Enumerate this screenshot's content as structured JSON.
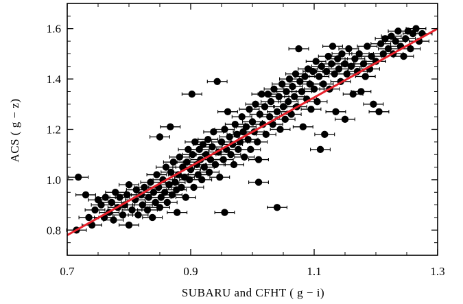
{
  "chart_data": {
    "type": "scatter",
    "xlabel": "SUBARU and CFHT ( g − i)",
    "ylabel": "ACS ( g − z)",
    "xlim": [
      0.7,
      1.3
    ],
    "ylim": [
      0.7,
      1.7
    ],
    "x_ticks": [
      0.7,
      0.9,
      1.1,
      1.3
    ],
    "x_tick_labels": [
      "0.7",
      "0.9",
      "1.1",
      "1.3"
    ],
    "y_ticks": [
      0.8,
      1.0,
      1.2,
      1.4,
      1.6
    ],
    "y_tick_labels": [
      "0.8",
      "1.0",
      "1.2",
      "1.4",
      "1.6"
    ],
    "grid": false,
    "legend": "none",
    "colors": {
      "points": "#000000",
      "fit_line": "#e8202a",
      "axes": "#000000"
    },
    "fit_line": {
      "x": [
        0.7,
        1.3
      ],
      "y": [
        0.78,
        1.6
      ]
    },
    "error_bars": "horizontal",
    "series": [
      {
        "x_err": 0.016,
        "points": [
          [
            0.715,
            0.8
          ],
          [
            0.718,
            1.01
          ],
          [
            0.73,
            0.94
          ],
          [
            0.735,
            0.85
          ],
          [
            0.74,
            0.82
          ],
          [
            0.745,
            0.88
          ],
          [
            0.75,
            0.92
          ],
          [
            0.755,
            0.9
          ],
          [
            0.76,
            0.85
          ],
          [
            0.762,
            0.93
          ],
          [
            0.768,
            0.87
          ],
          [
            0.772,
            0.91
          ],
          [
            0.775,
            0.84
          ],
          [
            0.778,
            0.95
          ],
          [
            0.782,
            0.89
          ],
          [
            0.785,
            0.93
          ],
          [
            0.79,
            0.86
          ],
          [
            0.793,
            0.9
          ],
          [
            0.797,
            0.94
          ],
          [
            0.8,
            0.82
          ],
          [
            0.8,
            0.98
          ],
          [
            0.805,
            0.88
          ],
          [
            0.81,
            0.92
          ],
          [
            0.812,
            0.96
          ],
          [
            0.815,
            0.86
          ],
          [
            0.82,
            0.94
          ],
          [
            0.822,
            0.9
          ],
          [
            0.825,
            0.97
          ],
          [
            0.83,
            0.88
          ],
          [
            0.832,
            0.93
          ],
          [
            0.835,
            0.99
          ],
          [
            0.838,
            0.85
          ],
          [
            0.84,
            0.95
          ],
          [
            0.843,
            0.91
          ],
          [
            0.845,
            1.02
          ],
          [
            0.848,
            0.97
          ],
          [
            0.85,
            0.89
          ],
          [
            0.85,
            1.17
          ],
          [
            0.852,
            0.93
          ],
          [
            0.855,
            1.0
          ],
          [
            0.858,
            0.95
          ],
          [
            0.86,
            1.05
          ],
          [
            0.862,
            0.91
          ],
          [
            0.865,
            0.98
          ],
          [
            0.867,
            1.21
          ],
          [
            0.868,
            1.03
          ],
          [
            0.87,
            0.94
          ],
          [
            0.872,
            1.07
          ],
          [
            0.875,
            0.99
          ],
          [
            0.877,
            0.96
          ],
          [
            0.878,
            0.87
          ],
          [
            0.88,
            1.02
          ],
          [
            0.882,
            1.09
          ],
          [
            0.885,
            0.97
          ],
          [
            0.887,
            1.05
          ],
          [
            0.89,
            1.01
          ],
          [
            0.892,
            0.93
          ],
          [
            0.894,
            1.07
          ],
          [
            0.896,
            1.12
          ],
          [
            0.898,
            1.0
          ],
          [
            0.9,
            1.04
          ],
          [
            0.902,
            1.34
          ],
          [
            0.903,
            1.1
          ],
          [
            0.905,
            0.97
          ],
          [
            0.907,
            1.15
          ],
          [
            0.91,
            1.06
          ],
          [
            0.912,
            1.02
          ],
          [
            0.914,
            1.12
          ],
          [
            0.916,
            1.08
          ],
          [
            0.918,
            1.0
          ],
          [
            0.92,
            1.14
          ],
          [
            0.922,
            1.05
          ],
          [
            0.925,
            1.1
          ],
          [
            0.928,
            1.16
          ],
          [
            0.93,
            1.03
          ],
          [
            0.932,
            1.08
          ],
          [
            0.935,
            1.13
          ],
          [
            0.937,
            1.19
          ],
          [
            0.94,
            1.06
          ],
          [
            0.943,
            1.39
          ],
          [
            0.945,
            1.11
          ],
          [
            0.947,
            1.01
          ],
          [
            0.95,
            1.15
          ],
          [
            0.953,
            1.08
          ],
          [
            0.955,
            0.87
          ],
          [
            0.955,
            1.2
          ],
          [
            0.958,
            1.12
          ],
          [
            0.96,
            1.27
          ],
          [
            0.963,
            1.17
          ],
          [
            0.965,
            1.1
          ],
          [
            0.968,
            1.14
          ],
          [
            0.97,
            1.06
          ],
          [
            0.972,
            1.22
          ],
          [
            0.975,
            1.18
          ],
          [
            0.977,
            1.12
          ],
          [
            0.98,
            1.15
          ],
          [
            0.983,
            1.25
          ],
          [
            0.985,
            1.19
          ],
          [
            0.987,
            1.09
          ],
          [
            0.99,
            1.21
          ],
          [
            0.993,
            1.16
          ],
          [
            0.995,
            1.28
          ],
          [
            0.997,
            1.12
          ],
          [
            1.0,
            1.23
          ],
          [
            1.003,
            1.19
          ],
          [
            1.005,
            1.3
          ],
          [
            1.008,
            1.15
          ],
          [
            1.01,
            0.99
          ],
          [
            1.01,
            1.08
          ],
          [
            1.012,
            1.26
          ],
          [
            1.015,
            1.34
          ],
          [
            1.017,
            1.22
          ],
          [
            1.02,
            1.29
          ],
          [
            1.022,
            1.18
          ],
          [
            1.025,
            1.34
          ],
          [
            1.028,
            1.25
          ],
          [
            1.03,
            1.31
          ],
          [
            1.033,
            1.22
          ],
          [
            1.035,
            1.36
          ],
          [
            1.04,
            0.89
          ],
          [
            1.04,
            1.27
          ],
          [
            1.043,
            1.33
          ],
          [
            1.045,
            1.2
          ],
          [
            1.048,
            1.38
          ],
          [
            1.05,
            1.29
          ],
          [
            1.053,
            1.24
          ],
          [
            1.055,
            1.35
          ],
          [
            1.058,
            1.31
          ],
          [
            1.06,
            1.4
          ],
          [
            1.063,
            1.26
          ],
          [
            1.065,
            1.37
          ],
          [
            1.068,
            1.33
          ],
          [
            1.07,
            1.42
          ],
          [
            1.072,
            1.29
          ],
          [
            1.075,
            1.52
          ],
          [
            1.077,
            1.39
          ],
          [
            1.08,
            1.35
          ],
          [
            1.082,
            1.21
          ],
          [
            1.085,
            1.41
          ],
          [
            1.088,
            1.32
          ],
          [
            1.09,
            1.44
          ],
          [
            1.093,
            1.38
          ],
          [
            1.095,
            1.28
          ],
          [
            1.098,
            1.43
          ],
          [
            1.1,
            1.36
          ],
          [
            1.103,
            1.47
          ],
          [
            1.105,
            1.31
          ],
          [
            1.108,
            1.41
          ],
          [
            1.11,
            1.12
          ],
          [
            1.112,
            1.45
          ],
          [
            1.115,
            1.38
          ],
          [
            1.117,
            1.18
          ],
          [
            1.12,
            1.43
          ],
          [
            1.123,
            1.49
          ],
          [
            1.125,
            1.36
          ],
          [
            1.128,
            1.46
          ],
          [
            1.13,
            1.53
          ],
          [
            1.133,
            1.42
          ],
          [
            1.135,
            1.27
          ],
          [
            1.138,
            1.48
          ],
          [
            1.14,
            1.44
          ],
          [
            1.143,
            1.39
          ],
          [
            1.145,
            1.5
          ],
          [
            1.15,
            1.24
          ],
          [
            1.15,
            1.46
          ],
          [
            1.153,
            1.42
          ],
          [
            1.156,
            1.52
          ],
          [
            1.16,
            1.45
          ],
          [
            1.163,
            1.34
          ],
          [
            1.166,
            1.48
          ],
          [
            1.17,
            1.43
          ],
          [
            1.173,
            1.5
          ],
          [
            1.176,
            1.35
          ],
          [
            1.18,
            1.46
          ],
          [
            1.183,
            1.41
          ],
          [
            1.186,
            1.53
          ],
          [
            1.19,
            1.44
          ],
          [
            1.193,
            1.49
          ],
          [
            1.196,
            1.3
          ],
          [
            1.2,
            1.47
          ],
          [
            1.205,
            1.27
          ],
          [
            1.208,
            1.54
          ],
          [
            1.212,
            1.5
          ],
          [
            1.215,
            1.56
          ],
          [
            1.22,
            1.52
          ],
          [
            1.225,
            1.57
          ],
          [
            1.228,
            1.5
          ],
          [
            1.232,
            1.55
          ],
          [
            1.236,
            1.59
          ],
          [
            1.24,
            1.53
          ],
          [
            1.245,
            1.49
          ],
          [
            1.248,
            1.56
          ],
          [
            1.252,
            1.59
          ],
          [
            1.256,
            1.52
          ],
          [
            1.26,
            1.58
          ],
          [
            1.265,
            1.6
          ],
          [
            1.27,
            1.55
          ],
          [
            1.275,
            1.58
          ]
        ]
      }
    ]
  }
}
